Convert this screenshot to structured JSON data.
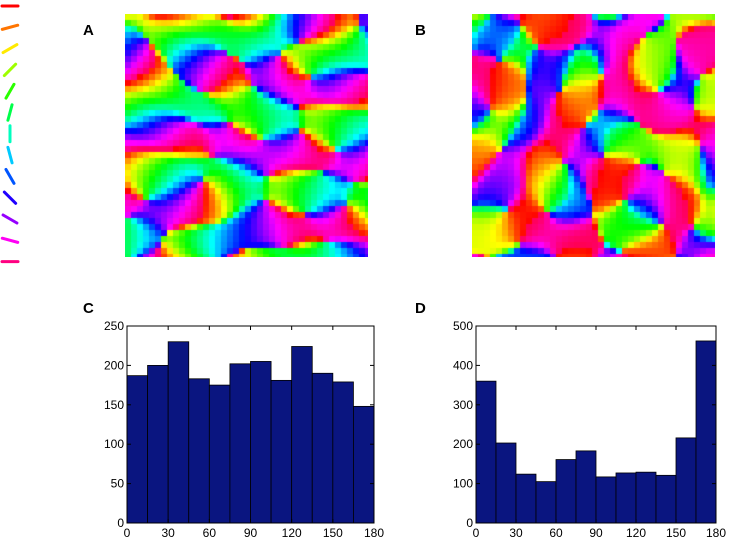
{
  "panels": {
    "A": "A",
    "B": "B",
    "C": "C",
    "D": "D"
  },
  "legend_icon_name": "orientation-color-key-icon",
  "map_colors": [
    "#ff0000",
    "#ff7f00",
    "#ffd000",
    "#b0ff00",
    "#33dd33",
    "#00e0c0",
    "#20b0ff",
    "#2040ff",
    "#6020ff",
    "#d000ff",
    "#ff10a0"
  ],
  "bar_color": "#0a1580",
  "chart_data": [
    {
      "type": "bar",
      "panel": "C",
      "x_bin_edges": [
        0,
        15,
        30,
        45,
        60,
        75,
        90,
        105,
        120,
        135,
        150,
        165,
        180
      ],
      "values": [
        187,
        200,
        230,
        183,
        175,
        202,
        205,
        181,
        224,
        190,
        179,
        148
      ],
      "xlim": [
        0,
        180
      ],
      "ylim": [
        0,
        250
      ],
      "xticks": [
        0,
        30,
        60,
        90,
        120,
        150,
        180
      ],
      "yticks": [
        0,
        50,
        100,
        150,
        200,
        250
      ],
      "title": "",
      "xlabel": "",
      "ylabel": ""
    },
    {
      "type": "bar",
      "panel": "D",
      "x_bin_edges": [
        0,
        15,
        30,
        45,
        60,
        75,
        90,
        105,
        120,
        135,
        150,
        165,
        180
      ],
      "values": [
        360,
        203,
        124,
        105,
        161,
        183,
        117,
        127,
        129,
        121,
        216,
        462
      ],
      "xlim": [
        0,
        180
      ],
      "ylim": [
        0,
        500
      ],
      "xticks": [
        0,
        30,
        60,
        90,
        120,
        150,
        180
      ],
      "yticks": [
        0,
        100,
        200,
        300,
        400,
        500
      ],
      "title": "",
      "xlabel": "",
      "ylabel": ""
    }
  ]
}
